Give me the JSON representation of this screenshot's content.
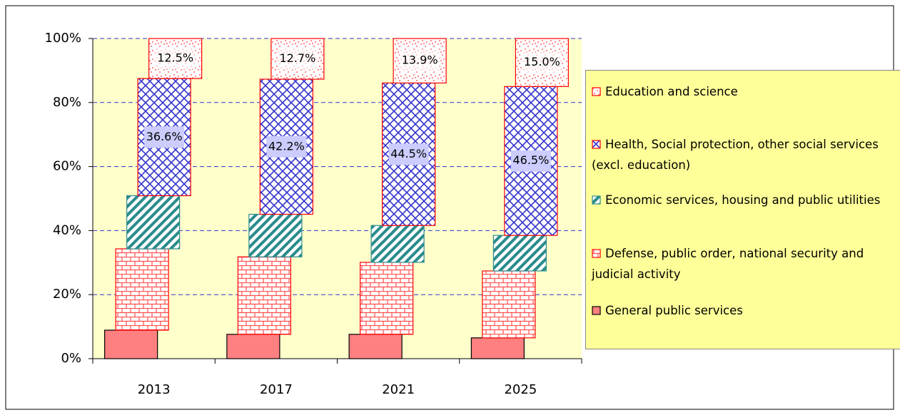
{
  "chart_data": {
    "type": "bar",
    "categories": [
      "2013",
      "2017",
      "2021",
      "2025"
    ],
    "ylim": [
      0,
      100
    ],
    "yticks": [
      {
        "value": 0,
        "label": "0%"
      },
      {
        "value": 20,
        "label": "20%"
      },
      {
        "value": 40,
        "label": "40%"
      },
      {
        "value": 60,
        "label": "60%"
      },
      {
        "value": 80,
        "label": "80%"
      },
      {
        "value": 100,
        "label": "100%"
      }
    ],
    "grid": true,
    "stacked": true,
    "legend": "right",
    "series": [
      {
        "name": "General public services",
        "color": "#ff8080",
        "pattern": "solid",
        "values": [
          8.9,
          7.6,
          7.6,
          6.5
        ]
      },
      {
        "name": "Defense, public order, national security and judicial activity",
        "color": "#ff5050",
        "pattern": "brick",
        "values": [
          25.4,
          24.2,
          22.5,
          20.9
        ]
      },
      {
        "name": "Economic services, housing and public utilities",
        "color": "#2a8c8c",
        "pattern": "stripes",
        "values": [
          16.6,
          13.3,
          11.5,
          11.1
        ]
      },
      {
        "name": "Health, Social protection, other social services (excl. education)",
        "color": "#3333cc",
        "pattern": "cross",
        "values": [
          36.6,
          42.2,
          44.5,
          46.5
        ],
        "value_labels": [
          "36.6%",
          "42.2%",
          "44.5%",
          "46.5%"
        ]
      },
      {
        "name": "Education and science",
        "color": "#ff6666",
        "pattern": "dots",
        "values": [
          12.5,
          12.7,
          13.9,
          15.0
        ],
        "value_labels": [
          "12.5%",
          "12.7%",
          "13.9%",
          "15.0%"
        ]
      }
    ]
  }
}
